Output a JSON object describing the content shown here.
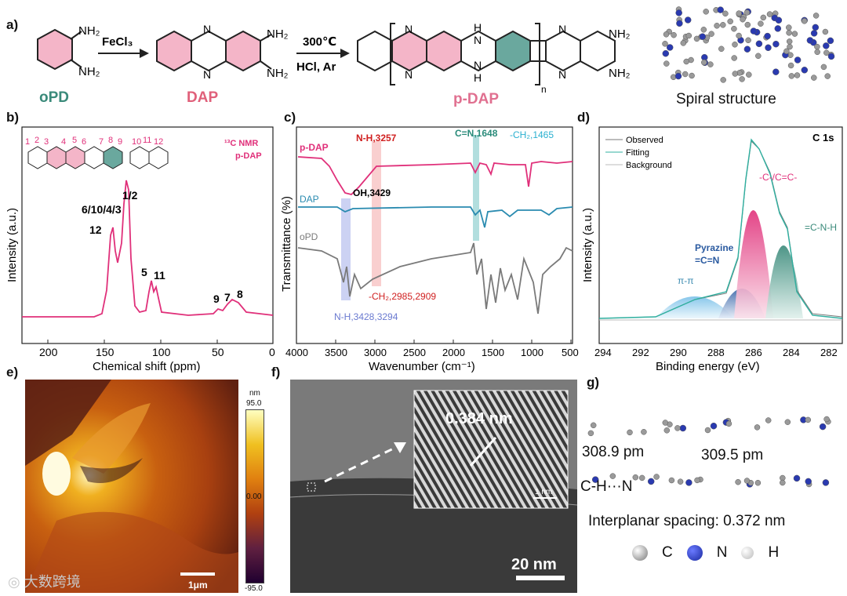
{
  "panel_labels": {
    "a": "a)",
    "b": "b)",
    "c": "c)",
    "d": "d)",
    "e": "e)",
    "f": "f)",
    "g": "g)"
  },
  "scheme": {
    "reagent1": "FeCl₃",
    "reagent2_temp": "300℃",
    "reagent2_cond": "HCl, Ar",
    "opd": "oPD",
    "dap": "DAP",
    "pdap": "p-DAP",
    "nh2": "NH₂",
    "n": "N",
    "h": "H",
    "sub_n": "n",
    "spiral": "Spiral structure"
  },
  "nmr": {
    "legend1": "¹³C NMR",
    "legend2": "p-DAP",
    "xlabel": "Chemical shift (ppm)",
    "ylabel": "Intensity (a.u.)",
    "xticks": [
      "200",
      "150",
      "100",
      "50",
      "0"
    ],
    "peak_labels": [
      "12",
      "6/10/4/3",
      "1/2",
      "5",
      "11",
      "9",
      "7",
      "8"
    ],
    "atom_numbers": [
      "1",
      "2",
      "3",
      "4",
      "5",
      "6",
      "7",
      "8",
      "9",
      "10",
      "11",
      "12"
    ],
    "color": "#e0307a"
  },
  "ftir": {
    "xlabel": "Wavenumber (cm⁻¹)",
    "ylabel": "Transmittance (%)",
    "xticks": [
      "4000",
      "3500",
      "3000",
      "2500",
      "2000",
      "1500",
      "1000",
      "500"
    ],
    "series": [
      {
        "name": "p-DAP",
        "color": "#e0307a"
      },
      {
        "name": "DAP",
        "color": "#2a8bb0"
      },
      {
        "name": "oPD",
        "color": "#7a7a7a"
      }
    ],
    "annotations": {
      "nh3257": "N-H,3257",
      "cn1648": "C=N,1648",
      "ch1465": "-CH₂,1465",
      "oh": "OH,3429",
      "ch2985": "-CH₂,2985,2909",
      "nh3428": "N-H,3428,3294"
    }
  },
  "xps": {
    "title": "C 1s",
    "legend": [
      "Observed",
      "Fitting",
      "Background"
    ],
    "xlabel": "Binding energy (eV)",
    "ylabel": "Intensity (a.u.)",
    "xticks": [
      "294",
      "292",
      "290",
      "288",
      "286",
      "284",
      "282"
    ],
    "peaks": {
      "cc": "-C-/C=C-",
      "cnh": "=C-N-H",
      "pyr1": "Pyrazine",
      "pyr2": "=C=N",
      "pipi": "π-π"
    }
  },
  "afm": {
    "scale_max": "95.0",
    "scale_mid": "0.00",
    "scale_min": "-95.0",
    "unit": "nm",
    "scalebar": "1μm"
  },
  "tem": {
    "spacing": "0.384 nm",
    "inset_scale": "1 nm",
    "scalebar": "20 nm"
  },
  "model": {
    "d1": "308.9 pm",
    "d2": "309.5 pm",
    "bond": "C-H···N",
    "spacing": "Interplanar spacing: 0.372 nm",
    "legend": [
      "C",
      "N",
      "H"
    ]
  },
  "watermark": "大数跨境"
}
